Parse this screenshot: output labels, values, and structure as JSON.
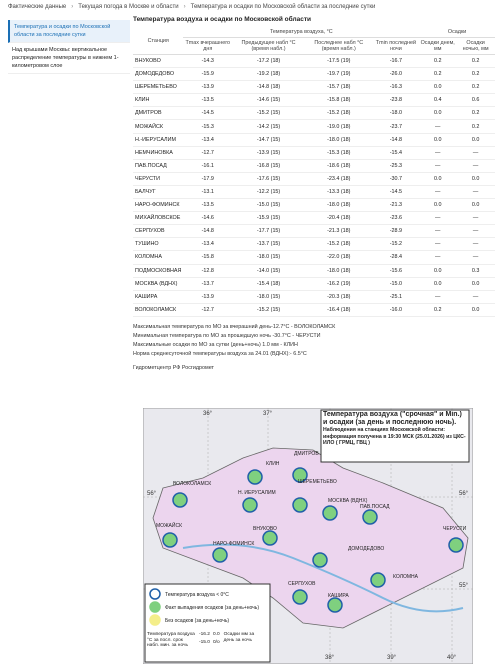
{
  "breadcrumb": [
    "Фактические данные",
    "Текущая погода в Москве и области",
    "Температура и осадки по Московской области за последние сутки"
  ],
  "sidebar": [
    "Температура и осадки по Московской области за последние сутки",
    "Над крышами Москвы: вертикальное распределение температуры в нижнем 1-километровом слое"
  ],
  "table": {
    "title": "Температура воздуха и осадки по Московской области",
    "group_headers": [
      "Температура воздуха, °С",
      "Осадки"
    ],
    "columns": [
      "Станция",
      "Tmax вчерашнего дня",
      "Предыдущее набл °С (время набл.)",
      "Последнее набл °С (время набл.)",
      "Tmin последней ночи",
      "Осадки днем, мм",
      "Осадки ночью, мм"
    ],
    "rows": [
      [
        "ВНУКОВО",
        "-14.3",
        "-17.2 (18)",
        "-17.5 (19)",
        "-16.7",
        "0.2",
        "0.2"
      ],
      [
        "ДОМОДЕДОВО",
        "-15.9",
        "-19.2 (18)",
        "-19.7 (19)",
        "-26.0",
        "0.2",
        "0.2"
      ],
      [
        "ШЕРЕМЕТЬЕВО",
        "-13.9",
        "-14.8 (18)",
        "-15.7 (18)",
        "-16.3",
        "0.0",
        "0.2"
      ],
      [
        "КЛИН",
        "-13.5",
        "-14.6 (15)",
        "-15.8 (18)",
        "-23.8",
        "0.4",
        "0.6"
      ],
      [
        "ДМИТРОВ",
        "-14.5",
        "-15.2 (15)",
        "-15.2 (18)",
        "-18.0",
        "0.0",
        "0.2"
      ],
      [
        "МОЖАЙСК",
        "-15.3",
        "-14.2 (15)",
        "-19.0 (18)",
        "-23.7",
        "—",
        "0.2"
      ],
      [
        "Н.-ИЕРУСАЛИМ",
        "-13.4",
        "-14.7 (15)",
        "-18.0 (18)",
        "-14.8",
        "0.0",
        "0.0"
      ],
      [
        "НЕМЧИНОВКА",
        "-12.7",
        "-13.9 (15)",
        "-15.3 (18)",
        "-15.4",
        "—",
        "—"
      ],
      [
        "ПАВ.ПОСАД",
        "-16.1",
        "-16.8 (15)",
        "-18.6 (18)",
        "-25.3",
        "—",
        "—"
      ],
      [
        "ЧЕРУСТИ",
        "-17.9",
        "-17.6 (15)",
        "-23.4 (18)",
        "-30.7",
        "0.0",
        "0.0"
      ],
      [
        "БАЛЧУГ",
        "-13.1",
        "-12.2 (15)",
        "-13.3 (18)",
        "-14.5",
        "—",
        "—"
      ],
      [
        "НАРО-ФОМИНСК",
        "-13.5",
        "-15.0 (15)",
        "-18.0 (18)",
        "-21.3",
        "0.0",
        "0.0"
      ],
      [
        "МИХАЙЛОВСКОЕ",
        "-14.6",
        "-15.9 (15)",
        "-20.4 (18)",
        "-23.6",
        "—",
        "—"
      ],
      [
        "СЕРПУХОВ",
        "-14.8",
        "-17.7 (15)",
        "-21.3 (18)",
        "-28.9",
        "—",
        "—"
      ],
      [
        "ТУШИНО",
        "-13.4",
        "-13.7 (15)",
        "-15.2 (18)",
        "-15.2",
        "—",
        "—"
      ],
      [
        "КОЛОМНА",
        "-15.8",
        "-18.0 (15)",
        "-22.0 (18)",
        "-28.4",
        "—",
        "—"
      ],
      [
        "ПОДМОСКОВНАЯ",
        "-12.8",
        "-14.0 (15)",
        "-18.0 (18)",
        "-15.6",
        "0.0",
        "0.3"
      ],
      [
        "МОСКВА (ВДНХ)",
        "-13.7",
        "-15.4 (18)",
        "-16.2 (19)",
        "-15.0",
        "0.0",
        "0.0"
      ],
      [
        "КАШИРА",
        "-13.9",
        "-18.0 (15)",
        "-20.3 (18)",
        "-25.1",
        "—",
        "—"
      ],
      [
        "ВОЛОКОЛАМСК",
        "-12.7",
        "-15.2 (15)",
        "-16.4 (18)",
        "-16.0",
        "0.2",
        "0.0"
      ]
    ]
  },
  "notes": [
    "Максимальная температура по МО за вчерашний день-12.7°C - ВОЛОКОЛАМСК",
    "Минимальная температура по МО за прошедшую ночь -30.7°C - ЧЕРУСТИ",
    "Максимальные осадки по МО за сутки (день+ночь) 1.0 мм - КЛИН",
    "Норма среднесуточной температуры воздуха за 24.01 (ВДНХ):- 6.5°C"
  ],
  "source": "Гидрометцентр РФ Росгидромет",
  "map": {
    "title": "Температура воздуха (\"срочная\" и Min.) и осадки (за день и последнюю ночь).",
    "subtitle": "Наблюдения на станциях Московской области: информация получена в 19:30 МСК (25.01.2026) из ЦКС-ИЛО ( ГРМЦ, ГВЦ )",
    "degree_labels": [
      "36°",
      "37°",
      "38°",
      "39°",
      "40°",
      "56°",
      "56°",
      "55°"
    ],
    "stations": [
      "КЛИН",
      "ДМИТРОВ",
      "ВОЛОКОЛАМСК",
      "Н. ИЕРУСАЛИМ",
      "ШЕРЕМЕТЬЕВО",
      "МОСКВА (ВДНХ)",
      "МОЖАЙСК",
      "ВНУКОВО",
      "ПАВ.ПОСАД",
      "ЧЕРУСТИ",
      "НАРО-ФОМИНСК",
      "ДОМОДЕДОВО",
      "СЕРПУХОВ",
      "КОЛОМНА",
      "КАШИРА"
    ],
    "legend": [
      "Температура воздуха < 0°С",
      "Факт выпадения осадков (за день+ночь)",
      "Без осадков (за день+ночь)"
    ],
    "legend_example": {
      "temp_header": "Температура воздуха °С за посл. срок набл. мин. за ночь",
      "precip_header": "Осадки мм за день за ночь",
      "values": [
        "-16.2",
        "0.0",
        "-15.0",
        "0/о"
      ]
    }
  }
}
